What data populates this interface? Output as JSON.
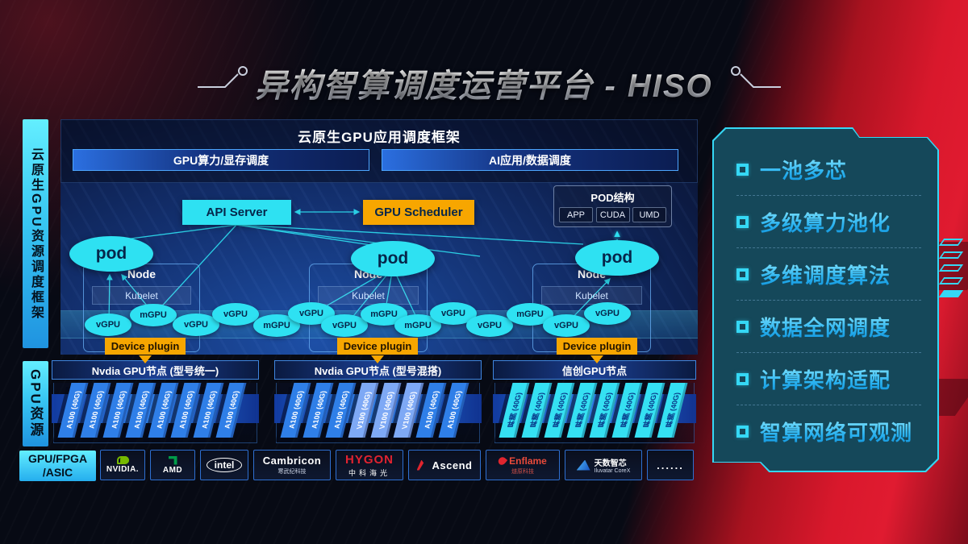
{
  "page": {
    "title": "异构智算调度运营平台 - HISO"
  },
  "sidebar": {
    "frame_label": "云原生GPU资源调度框架",
    "resource_label": "GPU资源",
    "asic_line1": "GPU/FPGA",
    "asic_line2": "/ASIC"
  },
  "framework": {
    "title": "云原生GPU应用调度框架",
    "left_bar": "GPU算力/显存调度",
    "right_bar": "AI应用/数据调度",
    "api_server": "API Server",
    "gpu_scheduler": "GPU Scheduler",
    "pod_structure": {
      "title": "POD结构",
      "items": [
        "APP",
        "CUDA",
        "UMD"
      ]
    },
    "pod": "pod",
    "node": "Node",
    "kubelet": "Kubelet",
    "device_plugin": "Device plugin",
    "ovals": [
      "vGPU",
      "mGPU",
      "vGPU",
      "vGPU",
      "mGPU",
      "vGPU",
      "vGPU",
      "mGPU",
      "mGPU",
      "vGPU",
      "vGPU",
      "mGPU",
      "vGPU",
      "vGPU"
    ]
  },
  "gpu_nodes": {
    "groups": [
      {
        "header": "Nvdia GPU节点 (型号统一)",
        "cards": [
          {
            "label": "A100 (40G)",
            "variant": "a100"
          },
          {
            "label": "A100 (40G)",
            "variant": "a100"
          },
          {
            "label": "A100 (40G)",
            "variant": "a100"
          },
          {
            "label": "A100 (40G)",
            "variant": "a100"
          },
          {
            "label": "A100 (40G)",
            "variant": "a100"
          },
          {
            "label": "A100 (40G)",
            "variant": "a100"
          },
          {
            "label": "A100 (40G)",
            "variant": "a100"
          },
          {
            "label": "A100 (40G)",
            "variant": "a100"
          }
        ]
      },
      {
        "header": "Nvdia GPU节点 (型号混搭)",
        "cards": [
          {
            "label": "A100 (40G)",
            "variant": "a100"
          },
          {
            "label": "A100 (40G)",
            "variant": "a100"
          },
          {
            "label": "A100 (40G)",
            "variant": "a100"
          },
          {
            "label": "V100 (40G)",
            "variant": "v100"
          },
          {
            "label": "V100 (40G)",
            "variant": "v100"
          },
          {
            "label": "V100 (40G)",
            "variant": "v100"
          },
          {
            "label": "A100 (40G)",
            "variant": "a100"
          },
          {
            "label": "A100 (40G)",
            "variant": "a100"
          }
        ]
      },
      {
        "header": "信创GPU节点",
        "cards": [
          {
            "label": "昇腾 (40G)",
            "variant": "ascend"
          },
          {
            "label": "昇腾 (40G)",
            "variant": "ascend"
          },
          {
            "label": "昇腾 (40G)",
            "variant": "ascend"
          },
          {
            "label": "昇腾 (40G)",
            "variant": "ascend"
          },
          {
            "label": "昇腾 (40G)",
            "variant": "ascend"
          },
          {
            "label": "昇腾 (40G)",
            "variant": "ascend"
          },
          {
            "label": "昇腾 (40G)",
            "variant": "ascend"
          },
          {
            "label": "昇腾 (40G)",
            "variant": "ascend"
          }
        ]
      }
    ]
  },
  "vendors": [
    {
      "id": "nvidia",
      "label": "NVIDIA."
    },
    {
      "id": "amd",
      "label": "AMD"
    },
    {
      "id": "intel",
      "label": "intel"
    },
    {
      "id": "cambricon",
      "label": "Cambricon",
      "sub": "寒武纪科技"
    },
    {
      "id": "hygon",
      "label": "HYGON",
      "sub": "中科海光"
    },
    {
      "id": "ascend",
      "label": "Ascend"
    },
    {
      "id": "enflame",
      "label": "Enflame",
      "sub": "燧原科技"
    },
    {
      "id": "iluvatar",
      "label": "天数智芯",
      "sub": "Iluvatar CoreX"
    },
    {
      "id": "more",
      "label": "......"
    }
  ],
  "features": [
    "一池多芯",
    "多级算力池化",
    "多维调度算法",
    "数据全网调度",
    "计算架构适配",
    "智算网络可观测"
  ],
  "colors": {
    "cyan": "#2ee1f2",
    "amber": "#f7a600",
    "card_blue": "#2f7fe8",
    "card_blue_light": "#7ea9f5",
    "card_cyan": "#35e0f2",
    "accent_red": "#d9182c"
  }
}
